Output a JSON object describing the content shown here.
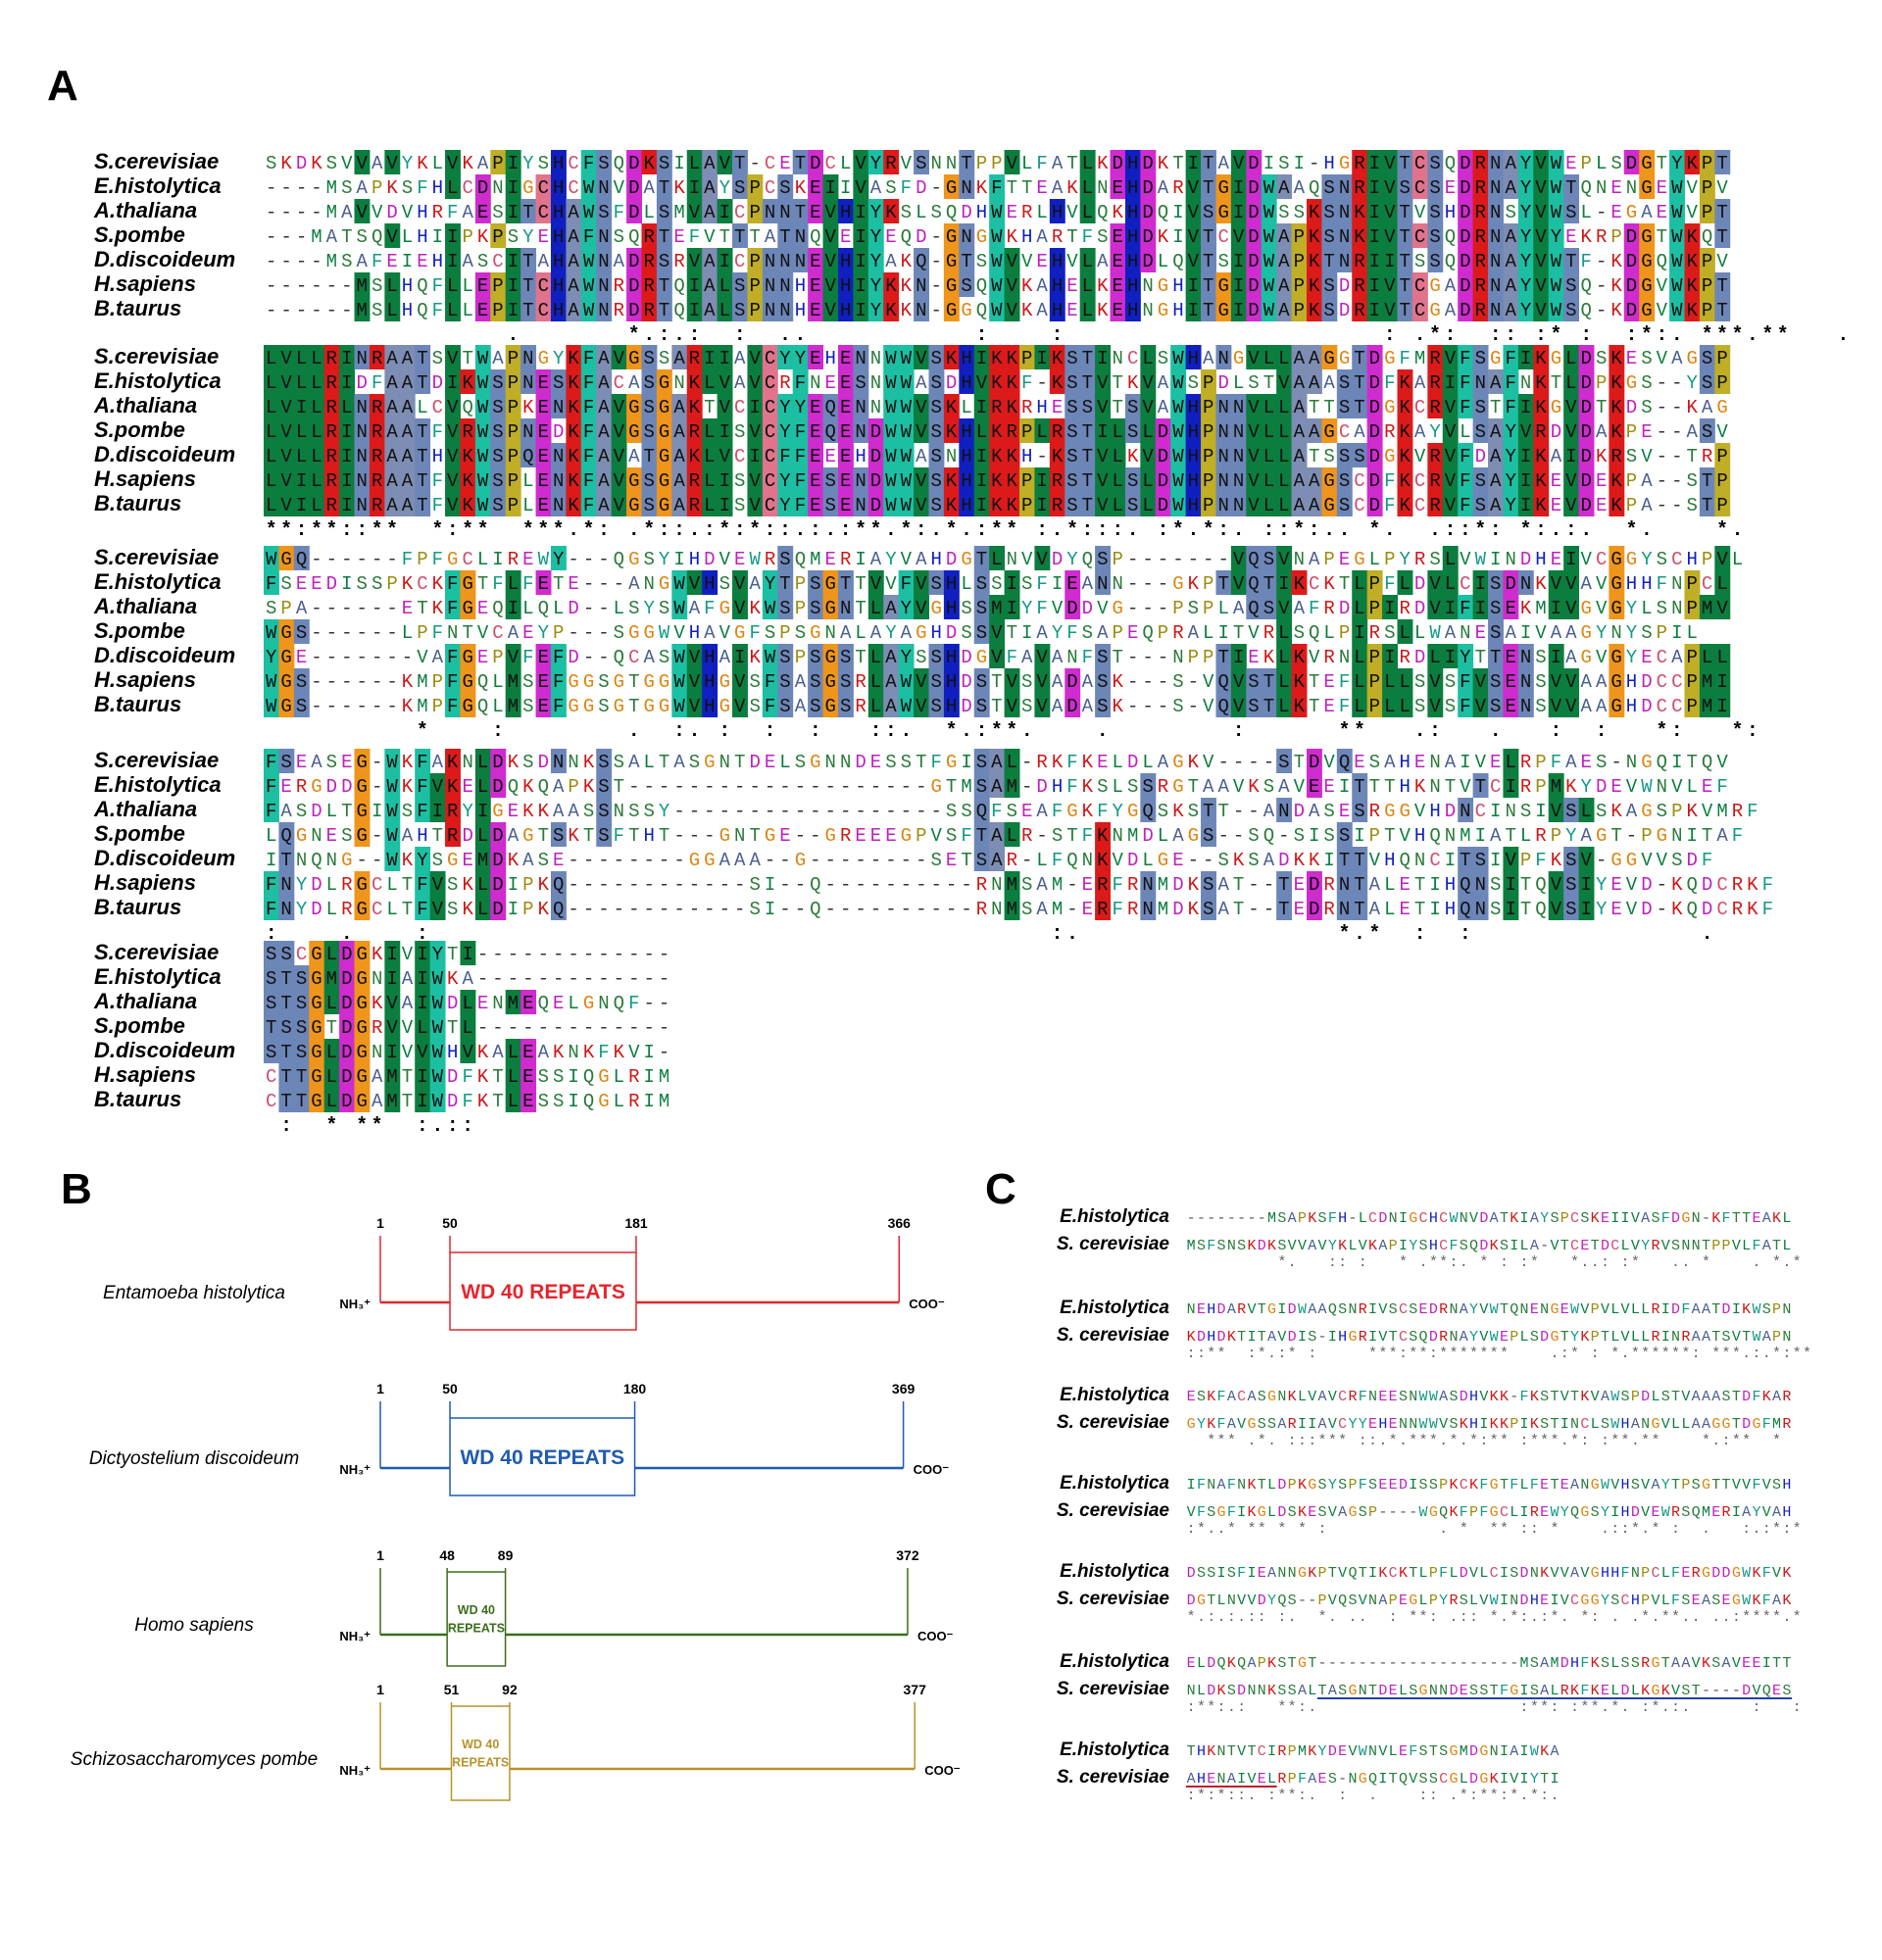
{
  "panel_a": {
    "label": "A",
    "species": [
      "S.cerevisiae",
      "E.histolytica",
      "A.thaliana",
      "S.pombe",
      "D.discoideum",
      "H.sapiens",
      "B.taurus"
    ],
    "blocks": [
      {
        "sequences": [
          "SKDKSVVAVYKLVKAPIYSHCFSQDKSILAVT-CETDCLVYRVSNNTPPVLFATLKDHDKTITAVDISI-HGRIVTCSQDRNAYVWEPLSDGTYKPT",
          "----MSAPKSFHLCDNIGCHCWNVDATKIAYSPCSKEIIVASFD-GNKFTTEAKLNEHDARVTGIDWAAQSNRIVSCSEDRNAYVWTQNENGEWVPV",
          "----MAVVDVHRFAESITCHAWSFDLSMVAICPNNTEVHIYKSLSQDHWERLHVLQKHDQIVSGIDWSSKSNKIVTVSHDRNSYVWSL-EGAEWVPT",
          "---MATSQVLHIIPKPSYEHAFNSQRTEFVTTTATNQVEIYEQD-GNGWKHARTFSEHDKIVTCVDWAPKSNKIVTCSQDRNAYVYEKRPDGTWKQT",
          "----MSAFEIEHIASCITAHAWNADRSRVAICPNNNEVHIYAKQ-GTSWVVEHVLAEHDLQVTSIDWAPKTNRIITSSQDRNAYVWTF-KDGQWKPV",
          "------MSLHQFLLEPITCHAWNRDRTQIALSPNNHEVHIYKKN-GSQWVKAHELKEHNGHITGIDWAPKSDRIVTCGADRNAYVWSQ-KDGVWKPT",
          "------MSLHQFLLEPITCHAWNRDRTQIALSPNNHEVHIYKKN-GGQWVKAHELKEHNGHITGIDWAPKSDRIVTCGADRNAYVWSQ-KDGVWKPT"
        ],
        "conservation": "                .       *.:.:  :  ..           :    :                     : .*:  :: :* :  :*:. ***.**   .  :  ."
      },
      {
        "sequences": [
          "LVLLRINRAATSVTWAPNGYKFAVGSSARIIAVCYYEHENNWWVSKHIKKPIKSTINCLSWHANGVLLAAGGTDGFMRVFSGFIKGLDSKESVAGSP",
          "LVLLRIDFAATDIKWSPNESKFACASGNKLVAVCRFNEESNWWASDHVKKF-KSTVTKVAWSPDLSTVAAASTDFKARIFNAFNKTLDPKGS--YSP",
          "LVILRLNRAALCVQWSPKENKFAVGSGAKTVCICYYEQENNWWVSKLIRKRHESSVTSVAWHPNNVLLATTSTDGKCRVFSTFIKGVDTKDS--KAG",
          "LVLLRINRAATFVRWSPNEDKFAVGSGARLISVCYFEQENDWWVSKHLKRPLRSTILSLDWHPNNVLLAAGCADRKAYVLSAYVRDVDAKPE--ASV",
          "LVLLRINRAATHVKWSPQENKFAVATGAKLVCICFFEEEHDWWASNHIKKH-KSTVLKVDWHPNNVLLATSSSDGKVRVFDAYIKAIDKRSV--TRP",
          "LVILRINRAATFVKWSPLENKFAVGSGARLISVCYFESENDWWVSKHIKKPIRSTVLSLDWHPNNVLLAAGSCDFKCRVFSAYIKEVDEKPA--STP",
          "LVILRINRAATFVKWSPLENKFAVGSGARLISVCYFESENDWWVSKHIKKPIRSTVLSLDWHPNNVLLAAGSCDFKCRVFSAYIKEVDEKPA--STP"
        ],
        "conservation": "**:**::**  *:**  ***.*: .*::.:*:*::.:.:**.*:.*.:** :.*:::. :*.*:. ::*:.. *.  .::*: *:.:.  *.    *."
      },
      {
        "sequences": [
          "WGQ------FPFGCLIREWY---QGSYIHDVEWRSQMERIAYVAHDGTLNVVDYQSP-------VQSVNAPEGLPYRSLVWINDHEIVCGGYSCHPVL",
          "FSEEDISSPKCKFGTFLFETE---ANGWVHSVAYTPSGTTVVFVSHLSSISFIEANN---GKPTVQTIKCKTLPFLDVLCISDNKVVAVGHHFNPCL",
          "SPA------ETKFGEQILQLD--LSYSWAFGVKWSPSGNTLAYVGHSSMIYFVDDVG---PSPLAQSVAFRDLPIRDVIFISEKMIVGVGYLSNPMV",
          "WGS------LPFNTVCAEYP---SGGWVHAVGFSPSGNALAYAGHDSSVTIAYFSAPEQPRALITVRLSQLPIRSLLWANESAIVAAGYNYSPIL",
          "YGE-------VAFGEPVFEFD--QCASWVHAIKWSPSGSTLAYSSHDGVFAVANFST---NPPTIEKLKVRNLPIRDLIYTTENSIAGVGYECAPLL",
          "WGS------KMPFGQLMSEFGGSGTGGWVHGVSFSASGSRLAWVSHDSTVSVADASK---S-VQVSTLKTEFLPLLSVSFVSENSVVAAGHDCCPMI",
          "WGS------KMPFGQLMSEFGGSGTGGWVHGVSFSASGSRLAWVSHDSTVSVADASK---S-VQVSTLKTEFLPLLSVSFVSENSVVAAGHDCCPMI"
        ],
        "conservation": "          *    :        .  :. :  :  :   ::.  *.:**.    .        :      **   .:   .   :  :   *:   *:"
      },
      {
        "sequences": [
          "FSEASEG-WKFAKNLDKSDNNKSSALTASGNTDELSGNNDESSTFGISAL-RKFKELDLAGKV----STDVQESAHENAIVELRPFAES-NGQITQV",
          "FERGDDG-WKFVKELDQKQAPKST--------------------GTMSAM-DHFKSLSSRGTAAVKSAVEEITTTHKNTVTCIRPMKYDEVWNVLEF",
          "FASDLTGIWSFIRYIGEKKAASSNSSY------------------SSQFSEAFGKFYGQSKSTT--ANDASESRGGVHDNCINSIVSLSKAGSPKVMRF",
          "LQGNESG-WAHTRDLDAGTSKTSFTHT---GNTGE--GREEEGPVSFTALR-STFKNMDLAGS--SQ-SISSIPTVHQNMIATLRPYAGT-PGNITAF",
          "ITNQNG--WKYSGEMDKASE--------GGAAA--G--------SETSAR-LFQNKVDLGE--SKSADKKITTVHQNCITSIVPFKSV-GGVVSDF",
          "FNYDLRGCLTFVSKLDIPKQ------------SI--Q----------RNMSAM-ERFRNMDKSAT--TEDRNTALETIHQNSITQVSIYEVD-KQDCRKF",
          "FNYDLRGCLTFVSKLDIPKQ------------SI--Q----------RNMSAM-ERFRNMDKSAT--TEDRNTALETIHQNSITQVSIYEVD-KQDCRKF"
        ],
        "conservation": ":    .    :                                         :.                 *.*  :  :               ."
      },
      {
        "sequences": [
          "SSCGLDGKIVIYTI-------------",
          "STSGMDGNIAIWKA-------------",
          "STSGLDGKVAIWDLENMEQELGNQF--",
          "TSSGTDGRVVLWTL-------------",
          "STSGLDGNIVVWHVKALEAKNKFKVI-",
          "CTTGLDGAMTIWDFKTLESSIQGLRIM",
          "CTTGLDGAMTIWDFKTLESSIQGLRIM"
        ],
        "conservation": " :  * **  :.::"
      }
    ]
  },
  "panel_b": {
    "label": "B",
    "constructs": [
      {
        "organism": "Entamoeba histolytica",
        "start": 1,
        "repeat_start": 50,
        "repeat_end": 181,
        "end": 366,
        "n_term": "NH₃⁺",
        "c_term": "COO⁻",
        "repeat_label": [
          "WD 40 REPEATS"
        ],
        "color": "#e3262d"
      },
      {
        "organism": "Dictyostelium discoideum",
        "start": 1,
        "repeat_start": 50,
        "repeat_end": 180,
        "end": 369,
        "n_term": "NH₃⁺",
        "c_term": "COO⁻",
        "repeat_label": [
          "WD 40 REPEATS"
        ],
        "color": "#1f5bb0"
      },
      {
        "organism": "Homo sapiens",
        "start": 1,
        "repeat_start": 48,
        "repeat_end": 89,
        "end": 372,
        "n_term": "NH₃⁺",
        "c_term": "COO⁻",
        "repeat_label": [
          "WD 40",
          "REPEATS"
        ],
        "color": "#3b6e1c"
      },
      {
        "organism": "Schizosaccharomyces pombe",
        "start": 1,
        "repeat_start": 51,
        "repeat_end": 92,
        "end": 377,
        "n_term": "NH₃⁺",
        "c_term": "COO⁻",
        "repeat_label": [
          "WD 40",
          "REPEATS"
        ],
        "color": "#b8922a"
      }
    ]
  },
  "panel_c": {
    "label": "C",
    "species": [
      "E.histolytica",
      "S. cerevisiae"
    ],
    "blocks": [
      {
        "sequences": [
          "--------MSAPKSFH-LCDNIGCHCWNVDATKIAYSPCSKEIIVASFDGN-KFTTEAKL",
          "MSFSNSKDKSVVAVYKLVKAPIYSHCFSQDKSILA-VTCETDCLVYRVSNNTPPVLFATL"
        ],
        "conservation": "         *.   :: :   * .**:. * : :*   *..: :*   .. *    . *.*"
      },
      {
        "sequences": [
          "NEHDARVTGIDWAAQSNRIVSCSEDRNAYVWTQNENGEWVPVLVLLRIDFAATDIKWSPN",
          "KDHDKTITAVDIS-IHGRIVTCSQDRNAYVWEPLSDGTYKPTLVLLRINRAATSVTWAPN"
        ],
        "conservation": "::**  :*.:* :     ***:**:*******    .:* : *.******: ***.:.*:**"
      },
      {
        "sequences": [
          "ESKFACASGNKLVAVCRFNEESNWWASDHVKK-FKSTVTKVAWSPDLSTVAAASTDFKAR",
          "GYKFAVGSSARIIAVCYYEHENNWWVSKHIKKPIKSTINCLSWHANGVLLAAGGTDGFMR"
        ],
        "conservation": "  *** .*. :::*** ::.*.***.*.*:** :***.*: :**.**    *.:**  *"
      },
      {
        "sequences": [
          "IFNAFNKTLDPKGSYSPFSEEDISSPKCKFGTFLFETEANGWVHSVAYTPSGTTVVFVSH",
          "VFSGFIKGLDSKESVAGSP----WGQKFPFGCLIREWYQGSYIHDVEWRSQMERIAYVAH"
        ],
        "conservation": ":*..* ** * * :           . *  ** :: *    .::*.* :  .   :.:*:*"
      },
      {
        "sequences": [
          "DSSISFIEANNGKPTVQTIKCKTLPFLDVLCISDNKVVAVGHHFNPCLFERGDDGWKFVK",
          "DGTLNVVDYQS--PVQSVNAPEGLPYRSLVWINDHEIVCGGYSCHPVLFSEASEGWKFAK"
        ],
        "conservation": "*.:.:.:: :.  *. ..  : **: .:: *.*:.:*. *: . .*.**.. ..:****.*"
      },
      {
        "sequences": [
          "ELDQKQAPKSTGT--------------------MSAMDHFKSLSSRGTAAVKSAVEEITT",
          "NLDKSDNNKSSALTASGNTDELSGNNDESSTFGISALRKFKELDLKGKVST----DVQES"
        ],
        "conservation": ":**:.:   **:.                    :**: :**.*. :*.:.      :   :"
      },
      {
        "sequences": [
          "THKNTVTCIRPMKYDEVWNVLEFSTSGMDGNIAIWKA",
          "AHENAIVELRPFAES-NGQITQVSSCGLDGKIVIYTI"
        ],
        "conservation": ":*:*::. :**:.  :  .    :: .*:**:*.*:."
      }
    ]
  }
}
